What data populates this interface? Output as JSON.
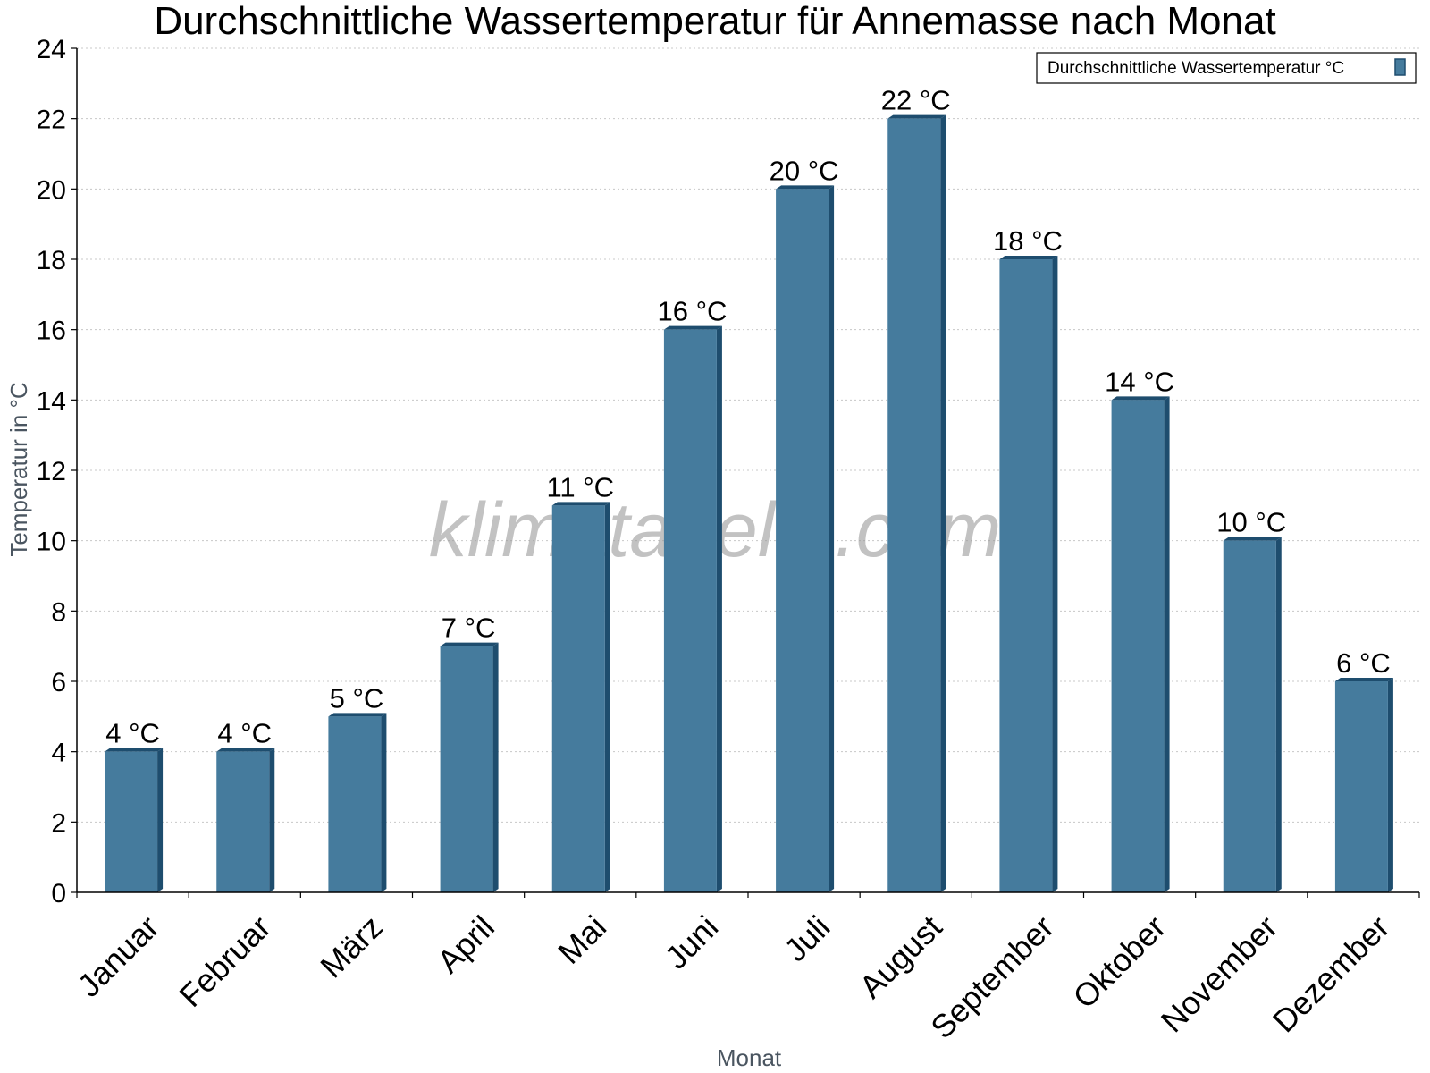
{
  "chart_data": {
    "type": "bar",
    "title": "Durchschnittliche Wassertemperatur für Annemasse nach Monat",
    "xlabel": "Monat",
    "ylabel": "Temperatur in °C",
    "ylim": [
      0,
      24
    ],
    "yticks": [
      0,
      2,
      4,
      6,
      8,
      10,
      12,
      14,
      16,
      18,
      20,
      22,
      24
    ],
    "categories": [
      "Januar",
      "Februar",
      "März",
      "April",
      "Mai",
      "Juni",
      "Juli",
      "August",
      "September",
      "Oktober",
      "November",
      "Dezember"
    ],
    "series": [
      {
        "name": "Durchschnittliche Wassertemperatur °C",
        "values": [
          4,
          4,
          5,
          7,
          11,
          16,
          20,
          22,
          18,
          14,
          10,
          6
        ],
        "color": "#457b9d",
        "edge_color": "#1e4d6e"
      }
    ],
    "data_labels": [
      "4 °C",
      "4 °C",
      "5 °C",
      "7 °C",
      "11 °C",
      "16 °C",
      "20 °C",
      "22 °C",
      "18 °C",
      "14 °C",
      "10 °C",
      "6 °C"
    ],
    "grid": true,
    "legend_position": "top-right",
    "watermark": "klimatabelle.com"
  }
}
